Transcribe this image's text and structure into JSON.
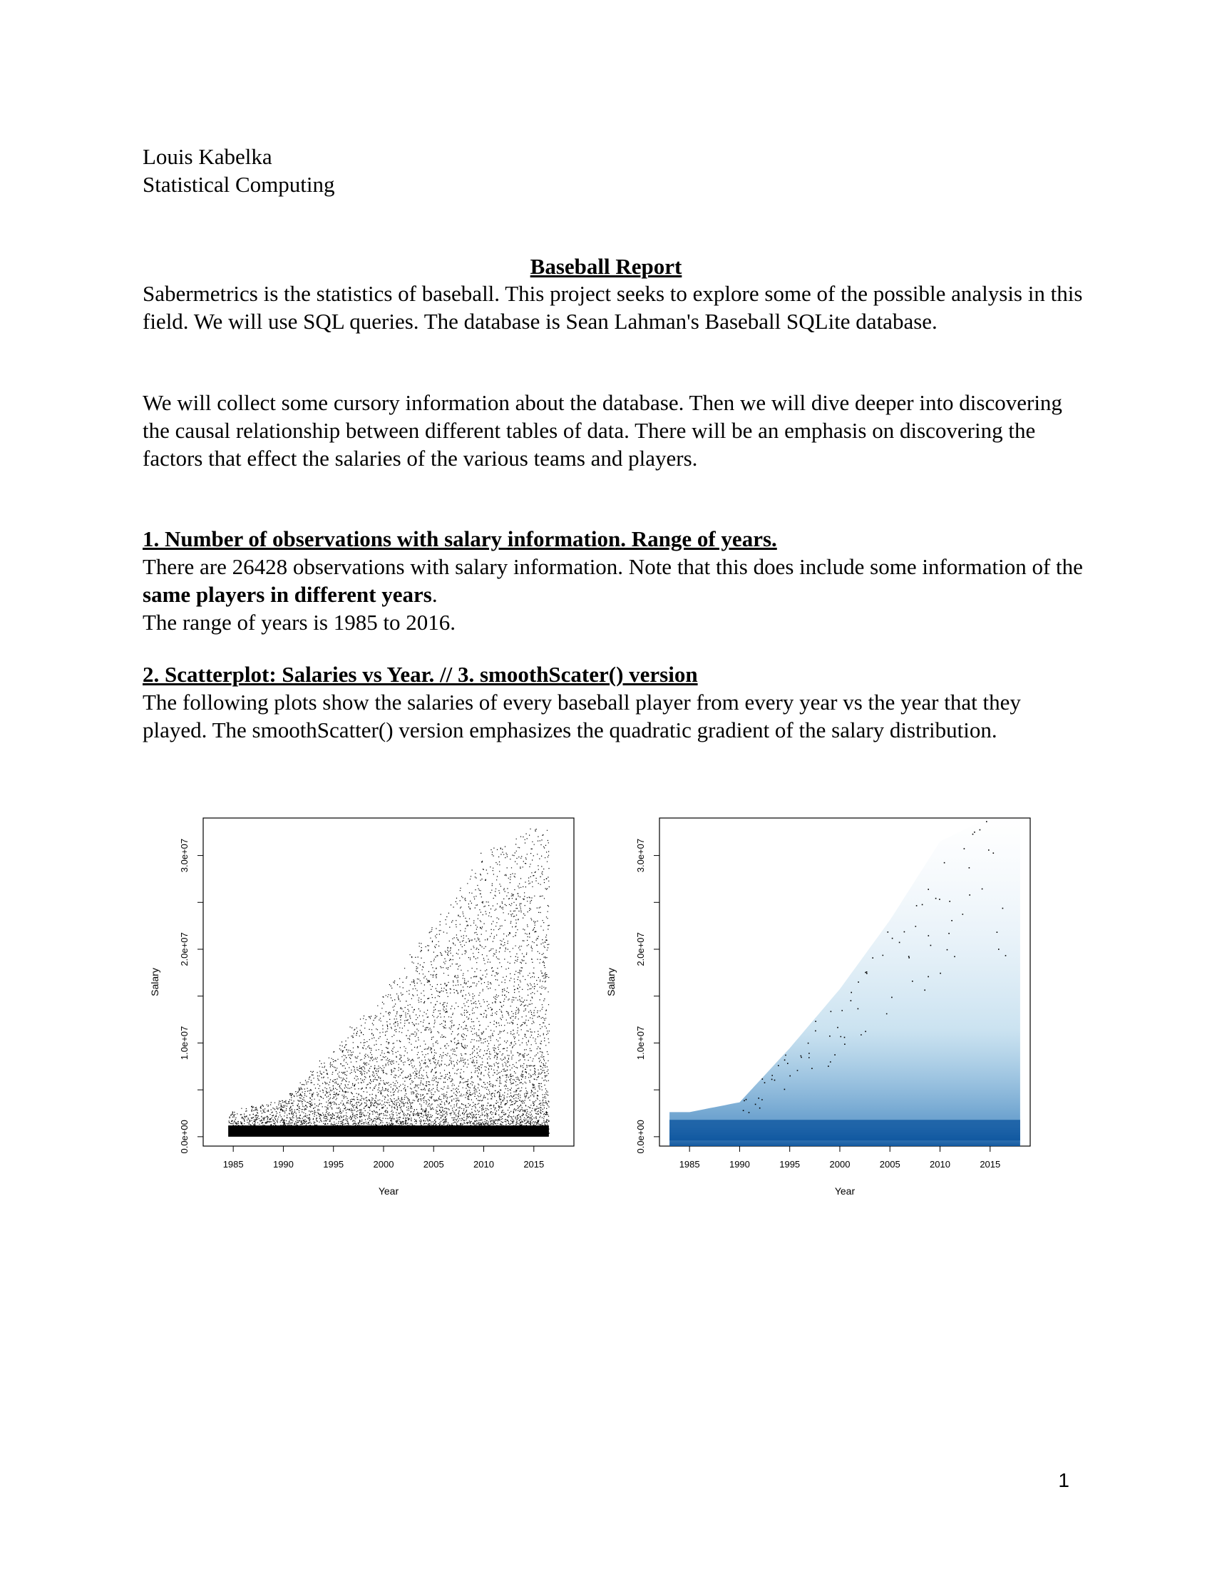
{
  "header": {
    "author": "Louis Kabelka",
    "course": "Statistical Computing"
  },
  "report": {
    "title": "Baseball Report",
    "intro_p1": "Sabermetrics is the statistics of baseball. This project seeks to explore some of the possible analysis in this field. We will use SQL queries. The database is Sean Lahman's Baseball SQLite database.",
    "intro_p2": "We will collect some cursory information about the database. Then we will dive deeper into discovering the causal relationship between different tables of data. There will be an emphasis on discovering the factors that effect the salaries of the various teams and players."
  },
  "section1": {
    "heading": "1. Number of observations with salary information. Range of years.",
    "body_a": "There are 26428 observations with salary information. Note that this does include some information of the ",
    "body_bold": "same players in different years",
    "body_b": ".",
    "body_c": "The range of years is 1985 to 2016."
  },
  "section2": {
    "heading": "2. Scatterplot: Salaries vs Year.  // 3. smoothScater() version",
    "body": "The following plots show the salaries of every baseball player from every year vs the year that they played. The smoothScatter() version emphasizes the quadratic gradient of the salary distribution."
  },
  "chart_data": [
    {
      "type": "scatter",
      "xlabel": "Year",
      "ylabel": "Salary",
      "x_ticks": [
        "1985",
        "1990",
        "1995",
        "2000",
        "2005",
        "2010",
        "2015"
      ],
      "y_ticks": [
        "0.0e+00",
        "1.0e+07",
        "2.0e+07",
        "3.0e+07"
      ],
      "xlim": [
        1982,
        2019
      ],
      "ylim": [
        -1000000,
        34000000
      ],
      "grid": false,
      "point_color": "#000000",
      "trend": {
        "description_values": "approximate upper envelope of salaries by year",
        "x": [
          1985,
          1990,
          1995,
          2000,
          2005,
          2010,
          2016
        ],
        "y": [
          2500000,
          3500000,
          9000000,
          15000000,
          22000000,
          30000000,
          33000000
        ]
      }
    },
    {
      "type": "heatmap",
      "xlabel": "Year",
      "ylabel": "Salary",
      "x_ticks": [
        "1985",
        "1990",
        "1995",
        "2000",
        "2005",
        "2010",
        "2015"
      ],
      "y_ticks": [
        "0.0e+00",
        "1.0e+07",
        "2.0e+07",
        "3.0e+07"
      ],
      "xlim": [
        1982,
        2019
      ],
      "ylim": [
        -1000000,
        34000000
      ],
      "grid": false,
      "density_color": "#08519c"
    }
  ],
  "page_number": "1"
}
